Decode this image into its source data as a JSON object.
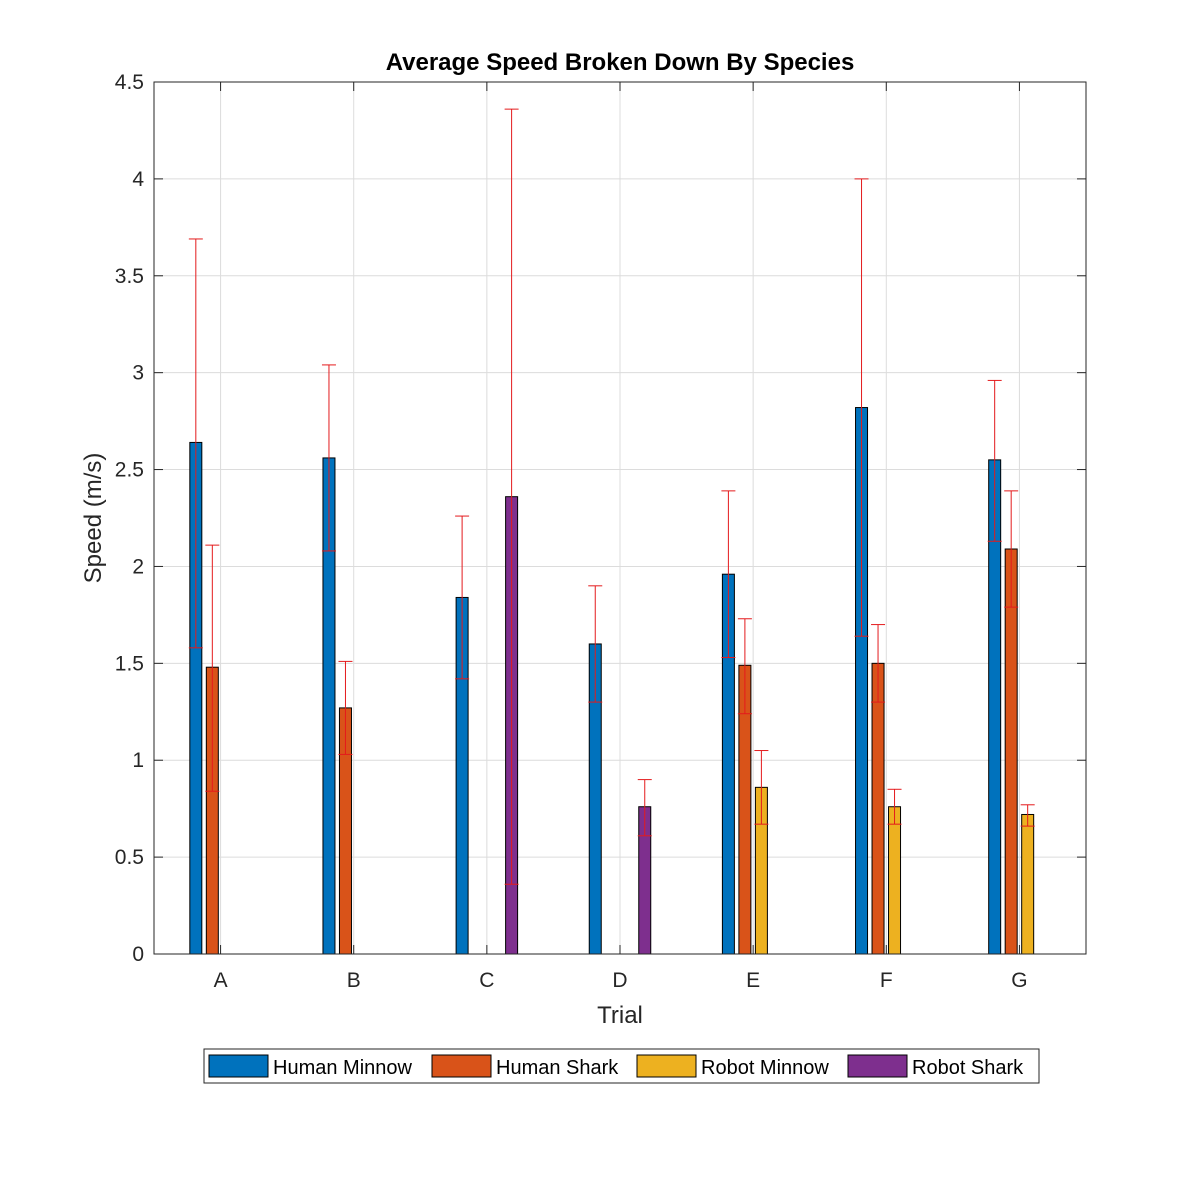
{
  "chart_data": {
    "type": "bar",
    "title": "Average Speed Broken Down By Species",
    "xlabel": "Trial",
    "ylabel": "Speed (m/s)",
    "categories": [
      "A",
      "B",
      "C",
      "D",
      "E",
      "F",
      "G"
    ],
    "ylim": [
      0,
      4.5
    ],
    "yticks": [
      0,
      0.5,
      1,
      1.5,
      2,
      2.5,
      3,
      3.5,
      4,
      4.5
    ],
    "ytick_labels": [
      "0",
      "0.5",
      "1",
      "1.5",
      "2",
      "2.5",
      "3",
      "3.5",
      "4",
      "4.5"
    ],
    "grid": true,
    "legend_position": "bottom-outside",
    "error_bar_color": "#e41a1c",
    "series": [
      {
        "name": "Human Minnow",
        "color": "#0072BD",
        "values": [
          2.64,
          2.56,
          1.84,
          1.6,
          1.96,
          2.82,
          2.55
        ],
        "err_low": [
          1.58,
          2.08,
          1.42,
          1.3,
          1.53,
          1.64,
          2.13
        ],
        "err_high": [
          3.69,
          3.04,
          2.26,
          1.9,
          2.39,
          4.0,
          2.96
        ]
      },
      {
        "name": "Human Shark",
        "color": "#D95319",
        "values": [
          1.48,
          1.27,
          null,
          null,
          1.49,
          1.5,
          2.09
        ],
        "err_low": [
          0.84,
          1.03,
          null,
          null,
          1.24,
          1.3,
          1.79
        ],
        "err_high": [
          2.11,
          1.51,
          null,
          null,
          1.73,
          1.7,
          2.39
        ]
      },
      {
        "name": "Robot Minnow",
        "color": "#EDB120",
        "values": [
          null,
          null,
          null,
          null,
          0.86,
          0.76,
          0.72
        ],
        "err_low": [
          null,
          null,
          null,
          null,
          0.67,
          0.67,
          0.66
        ],
        "err_high": [
          null,
          null,
          null,
          null,
          1.05,
          0.85,
          0.77
        ]
      },
      {
        "name": "Robot Shark",
        "color": "#7E2F8E",
        "values": [
          null,
          null,
          2.36,
          0.76,
          null,
          null,
          null
        ],
        "err_low": [
          null,
          null,
          0.36,
          0.61,
          null,
          null,
          null
        ],
        "err_high": [
          null,
          null,
          4.36,
          0.9,
          null,
          null,
          null
        ]
      }
    ]
  }
}
